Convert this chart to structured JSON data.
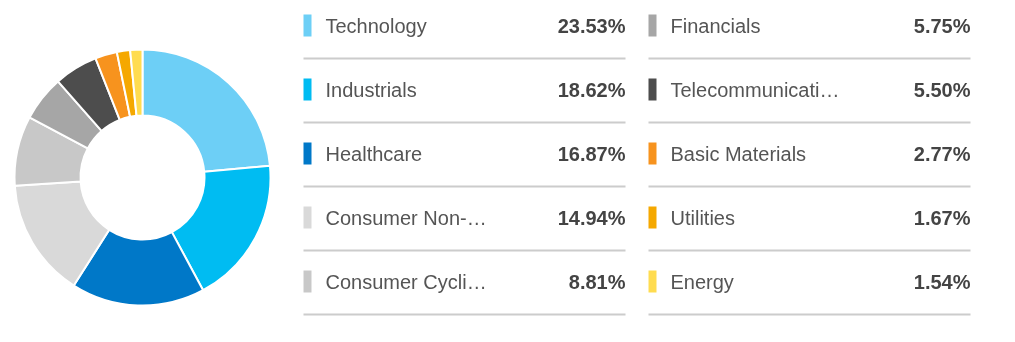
{
  "chart_data": {
    "type": "donut",
    "legend": "right",
    "categories": [
      "Technology",
      "Industrials",
      "Healthcare",
      "Consumer Non-…",
      "Consumer Cycli…",
      "Financials",
      "Telecommunicati…",
      "Basic Materials",
      "Utilities",
      "Energy"
    ],
    "values": [
      23.53,
      18.62,
      16.87,
      14.94,
      8.81,
      5.75,
      5.5,
      2.77,
      1.67,
      1.54
    ],
    "value_labels": [
      "23.53%",
      "18.62%",
      "16.87%",
      "14.94%",
      "8.81%",
      "5.75%",
      "5.50%",
      "2.77%",
      "1.67%",
      "1.54%"
    ],
    "colors": [
      "#6dcff6",
      "#00bcf2",
      "#0078c8",
      "#d9d9d9",
      "#c8c8c8",
      "#a6a6a6",
      "#4d4d4d",
      "#f7931e",
      "#f5a800",
      "#ffdc50"
    ]
  }
}
